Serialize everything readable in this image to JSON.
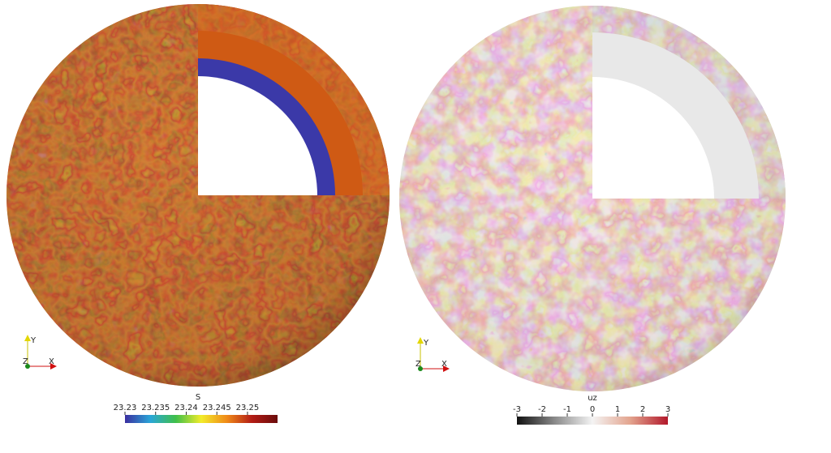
{
  "panels": [
    {
      "colorbar": {
        "title": "S",
        "ticks": [
          "23.23",
          "23.235",
          "23.24",
          "23.245",
          "23.25"
        ],
        "colormap": "rainbow-desaturated",
        "colors": [
          "#3b2fa0",
          "#2aa6d8",
          "#3fbf4a",
          "#f2ec2a",
          "#f08a18",
          "#b21b15",
          "#6a0c0c"
        ]
      },
      "axes": {
        "y": "Y",
        "z": "Z",
        "x": "X"
      }
    },
    {
      "colorbar": {
        "title": "uz",
        "ticks": [
          "-3",
          "-2",
          "-1",
          "0",
          "1",
          "2",
          "3"
        ],
        "colormap": "diverging-gray-red",
        "colors": [
          "#111111",
          "#8a8a8a",
          "#f4f4f4",
          "#e3a48e",
          "#b2182b"
        ]
      },
      "axes": {
        "y": "Y",
        "z": "Z",
        "x": "X"
      }
    }
  ]
}
